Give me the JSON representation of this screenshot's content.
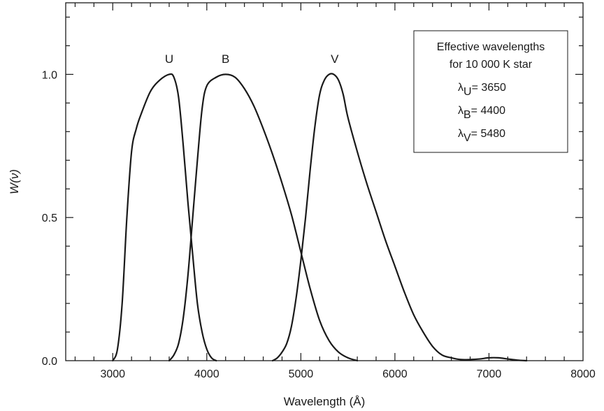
{
  "chart_data": {
    "type": "line",
    "xlabel": "Wavelength (Å)",
    "ylabel": "W(ν)",
    "xlim": [
      2500,
      8000
    ],
    "ylim": [
      0.0,
      1.25
    ],
    "x_ticks": [
      3000,
      4000,
      5000,
      6000,
      7000,
      8000
    ],
    "y_ticks": [
      0.0,
      0.5,
      1.0
    ],
    "x_tick_labels": [
      "3000",
      "4000",
      "5000",
      "6000",
      "7000",
      "8000"
    ],
    "y_tick_labels": [
      "0.0",
      "0.5",
      "1.0"
    ],
    "grid": false,
    "colors": {
      "line": "#1a1a1a",
      "axis": "#1a1a1a",
      "background": "#ffffff"
    },
    "series": [
      {
        "name": "U",
        "x": [
          3000,
          3050,
          3100,
          3150,
          3200,
          3250,
          3300,
          3400,
          3500,
          3600,
          3650,
          3700,
          3750,
          3800,
          3850,
          3900,
          3950,
          4000,
          4050,
          4100
        ],
        "y": [
          0.0,
          0.04,
          0.2,
          0.5,
          0.73,
          0.81,
          0.86,
          0.94,
          0.98,
          1.0,
          0.99,
          0.92,
          0.75,
          0.55,
          0.37,
          0.2,
          0.1,
          0.04,
          0.01,
          0.0
        ]
      },
      {
        "name": "B",
        "x": [
          3600,
          3650,
          3700,
          3750,
          3800,
          3850,
          3900,
          3950,
          4000,
          4100,
          4200,
          4300,
          4400,
          4500,
          4600,
          4700,
          4800,
          4900,
          5000,
          5100,
          5200,
          5300,
          5400,
          5500,
          5600
        ],
        "y": [
          0.0,
          0.02,
          0.06,
          0.15,
          0.3,
          0.5,
          0.7,
          0.88,
          0.96,
          0.99,
          1.0,
          0.99,
          0.95,
          0.89,
          0.81,
          0.72,
          0.62,
          0.51,
          0.38,
          0.25,
          0.14,
          0.07,
          0.03,
          0.01,
          0.0
        ]
      },
      {
        "name": "V",
        "x": [
          4700,
          4750,
          4800,
          4850,
          4900,
          4950,
          5000,
          5050,
          5100,
          5150,
          5200,
          5250,
          5300,
          5350,
          5400,
          5450,
          5500,
          5600,
          5700,
          5800,
          5900,
          6000,
          6100,
          6200,
          6300,
          6400,
          6500,
          6600,
          6700,
          6800,
          6900,
          7000,
          7100,
          7200,
          7300,
          7400
        ],
        "y": [
          0.0,
          0.01,
          0.03,
          0.06,
          0.12,
          0.22,
          0.35,
          0.5,
          0.67,
          0.82,
          0.93,
          0.98,
          1.0,
          1.0,
          0.98,
          0.93,
          0.85,
          0.73,
          0.62,
          0.52,
          0.42,
          0.33,
          0.24,
          0.16,
          0.1,
          0.05,
          0.02,
          0.01,
          0.004,
          0.004,
          0.006,
          0.01,
          0.01,
          0.006,
          0.002,
          0.0
        ]
      }
    ],
    "series_labels": [
      {
        "text": "U",
        "x": 3600,
        "y": 1.04
      },
      {
        "text": "B",
        "x": 4200,
        "y": 1.04
      },
      {
        "text": "V",
        "x": 5360,
        "y": 1.04
      }
    ],
    "legend_box": {
      "placement": "top-right",
      "title_line1": "Effective wavelengths",
      "title_line2": "for 10 000 K star",
      "entries": [
        {
          "symbol": "λ",
          "sub": "U",
          "value": "= 3650"
        },
        {
          "symbol": "λ",
          "sub": "B",
          "value": "= 4400"
        },
        {
          "symbol": "λ",
          "sub": "V",
          "value": "= 5480"
        }
      ]
    }
  }
}
